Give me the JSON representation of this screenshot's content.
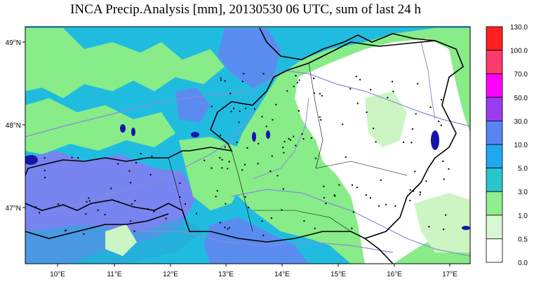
{
  "title": "INCA Precip.Analysis [mm], 20130530 06 UTC, sum of last 24 h",
  "axes": {
    "lon_labels": [
      "10°E",
      "11°E",
      "12°E",
      "13°E",
      "14°E",
      "15°E",
      "16°E",
      "17°E"
    ],
    "lat_labels": [
      "49°N",
      "48°N",
      "47°N"
    ]
  },
  "colorbar": {
    "labels": [
      "130.0",
      "100.0",
      "70.0",
      "50.0",
      "30.0",
      "10.0",
      "5.0",
      "3.0",
      "1.0",
      "0.5",
      "0.0"
    ],
    "colors": [
      "#ff2020",
      "#ff3a6e",
      "#ff00ff",
      "#9b3cf0",
      "#5a84f2",
      "#20a8f0",
      "#29c6cc",
      "#90ee90",
      "#d7f8d2",
      "#ffffff"
    ]
  },
  "map_colors": {
    "green": "#88ec88",
    "light_green": "#cdf5c4",
    "cyan": "#20bce0",
    "blue": "#5a8cf0",
    "purple": "#7884f0",
    "teal": "#2aa8d8",
    "white": "#ffffff",
    "lake": "#1515a8",
    "river": "#8a8ad8",
    "border": "#000000"
  }
}
